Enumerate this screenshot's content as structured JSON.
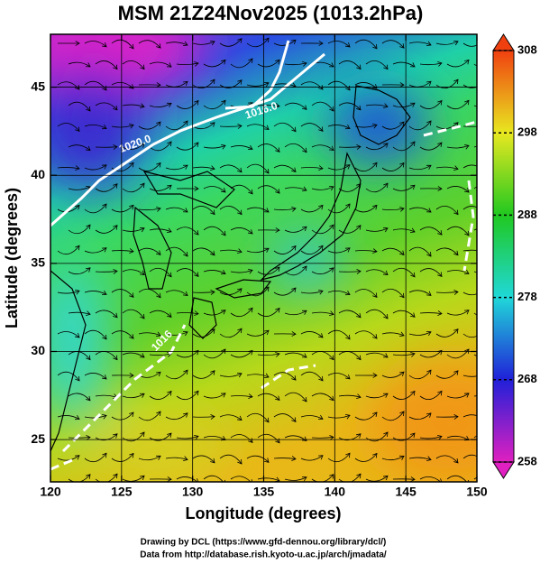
{
  "map": {
    "title": "MSM 21Z24Nov2025 (1013.2hPa)",
    "xlabel": "Longitude (degrees)",
    "ylabel": "Latitude  (degrees)",
    "xlim": [
      120,
      150
    ],
    "ylim": [
      22.6,
      48
    ],
    "xticks": [
      120,
      125,
      130,
      135,
      140,
      145,
      150
    ],
    "yticks": [
      25,
      30,
      35,
      40,
      45
    ],
    "grid": true,
    "colorbar": {
      "lim": [
        258,
        308
      ],
      "ticks": [
        258,
        268,
        278,
        288,
        298,
        308
      ]
    },
    "contour_labels": [
      "1020.0",
      "1016.0",
      "1016"
    ]
  },
  "credits": [
    "Drawing by DCL (https://www.gfd-dennou.org/library/dcl/)",
    "Data from http://database.rish.kyoto-u.ac.jp/arch/jmadata/"
  ]
}
